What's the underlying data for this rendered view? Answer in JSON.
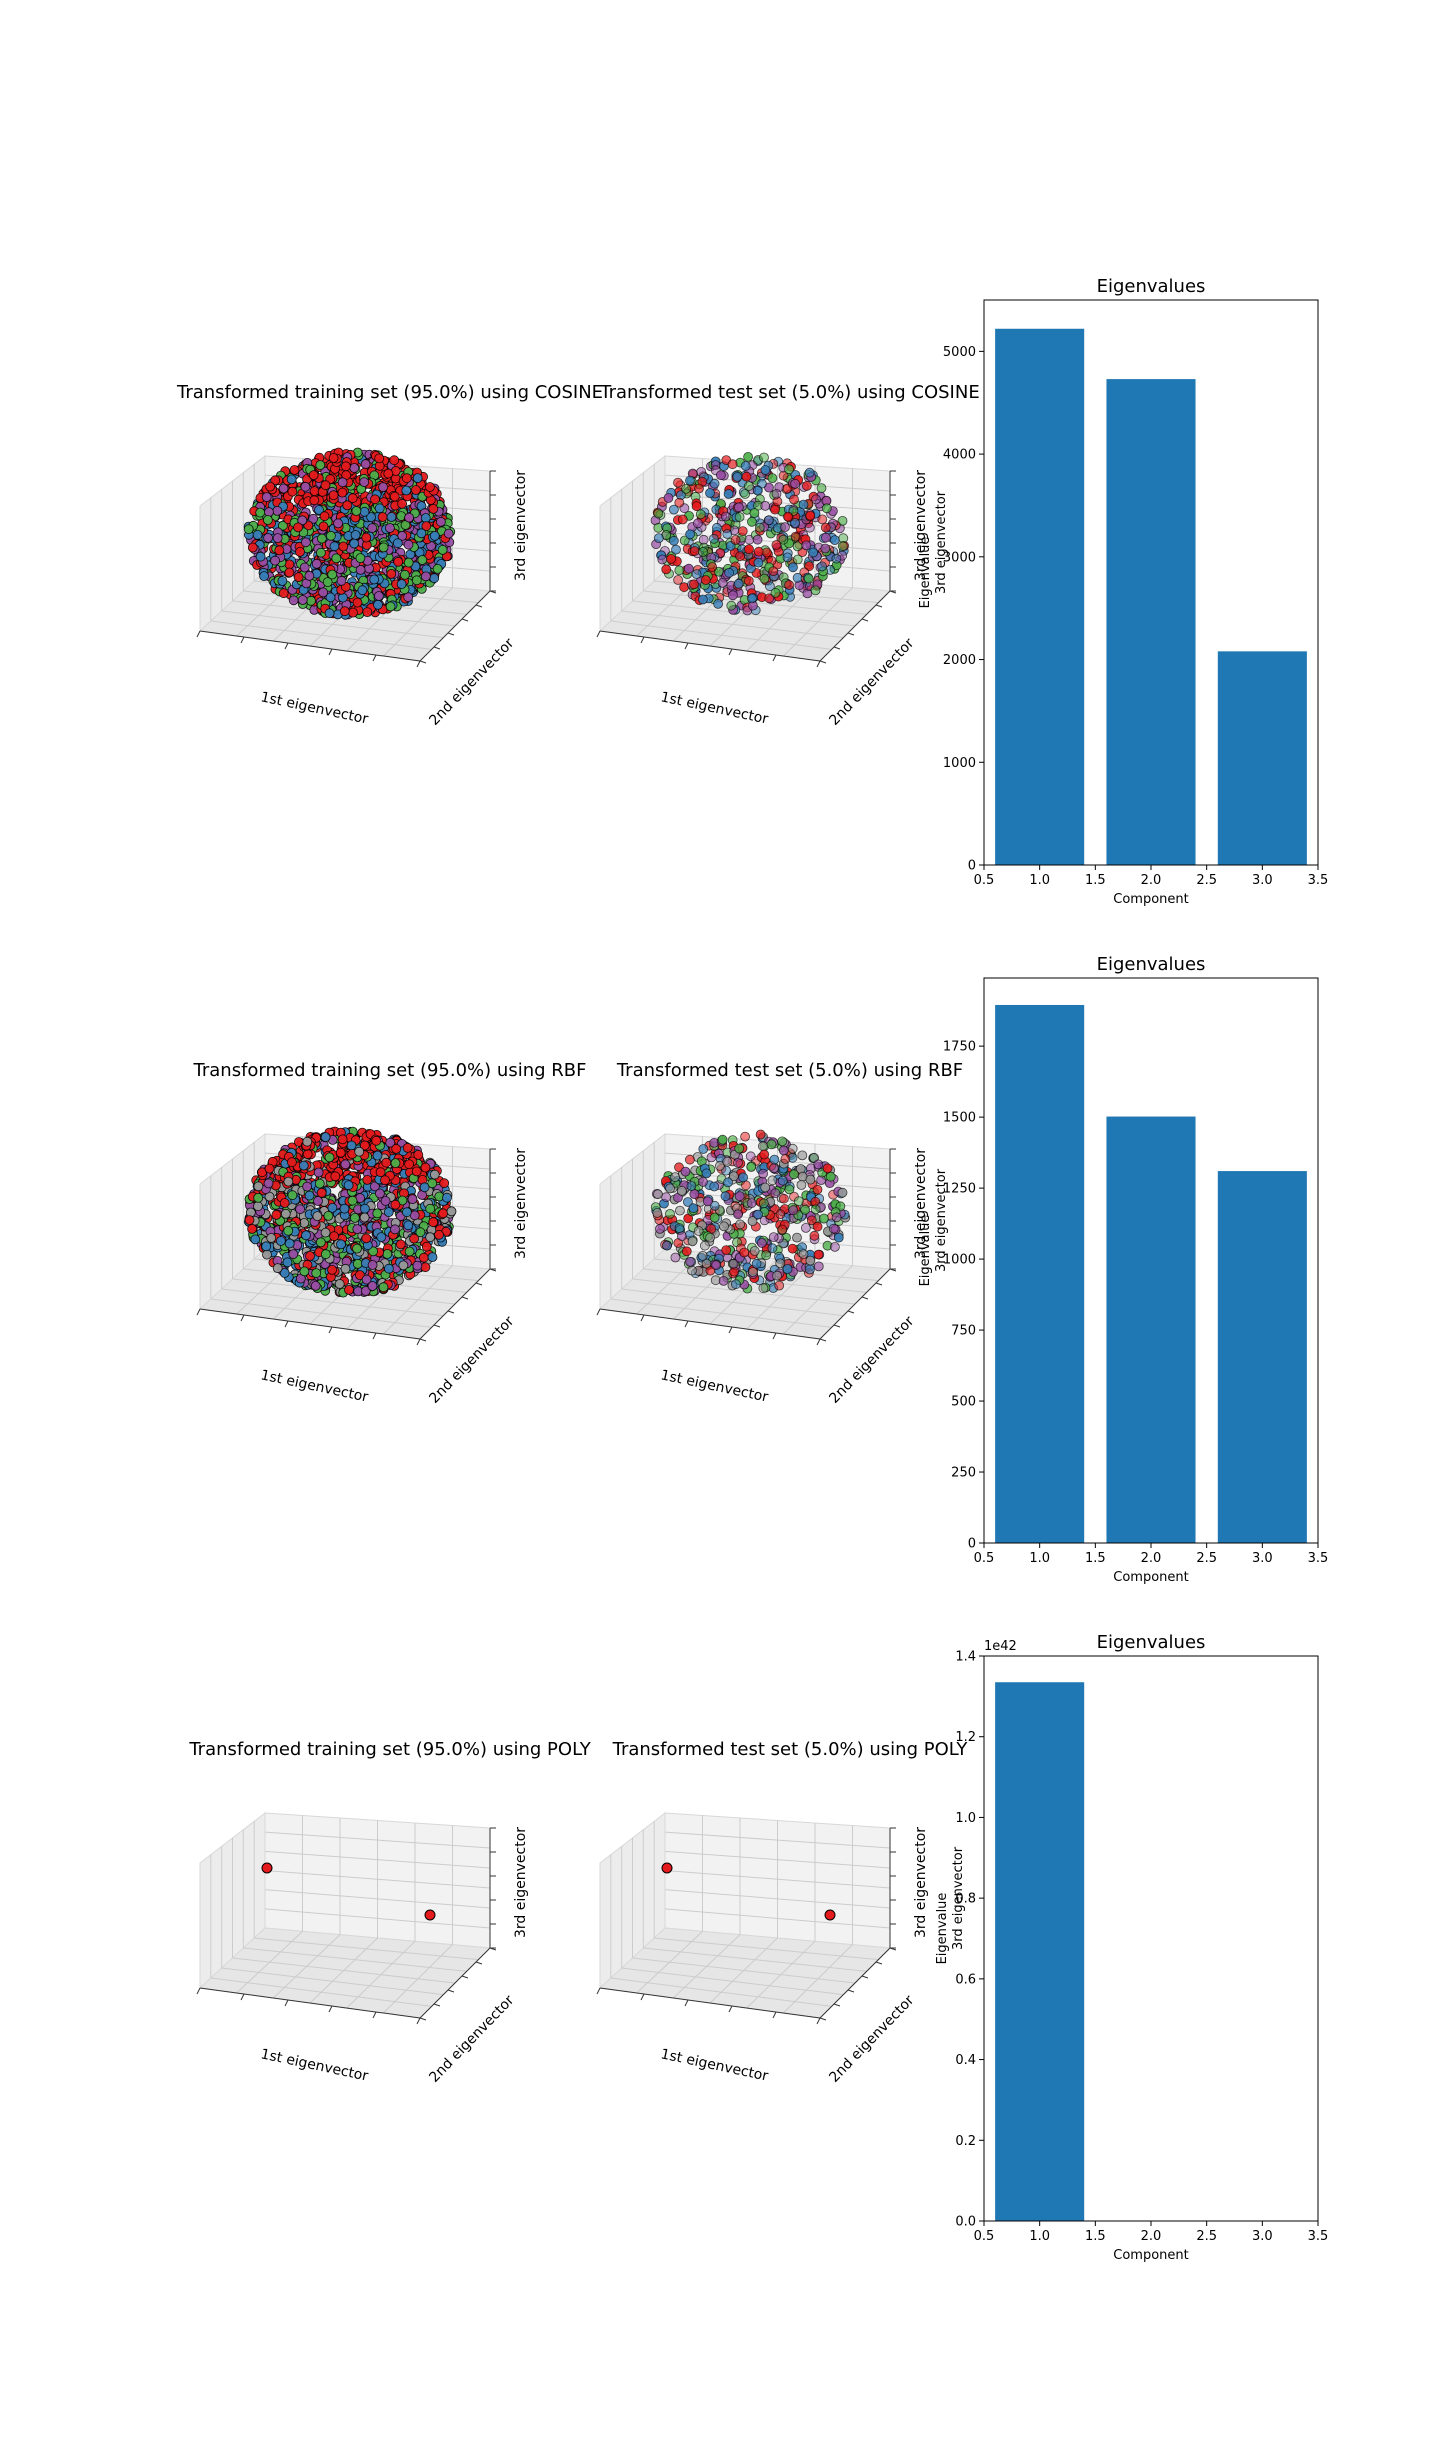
{
  "chart_data": [
    {
      "type": "scatter3d",
      "title": "Transformed training set (95.0%) using COSINE",
      "xlabel": "1st eigenvector",
      "ylabel": "2nd eigenvector",
      "zlabel": "3rd eigenvector",
      "shape": "dense ellipsoid cloud",
      "point_colors": [
        "#e41a1c",
        "#377eb8",
        "#4daf4a",
        "#984ea3"
      ]
    },
    {
      "type": "scatter3d",
      "title": "Transformed test set (5.0%) using COSINE",
      "xlabel": "1st eigenvector",
      "ylabel": "2nd eigenvector",
      "zlabel": "3rd eigenvector",
      "shape": "sparse ellipsoid cloud",
      "point_colors": [
        "#e41a1c",
        "#377eb8",
        "#4daf4a",
        "#984ea3"
      ]
    },
    {
      "type": "bar",
      "title": "Eigenvalues",
      "xlabel": "Component",
      "ylabel": "Eigenvalue",
      "overlap_label": "3rd eigenvector",
      "categories": [
        1,
        2,
        3
      ],
      "values": [
        5220,
        4730,
        2080
      ],
      "ylim": [
        0,
        5500
      ],
      "xlim": [
        0.5,
        3.5
      ],
      "xticks": [
        "0.5",
        "1.0",
        "1.5",
        "2.0",
        "2.5",
        "3.0",
        "3.5"
      ],
      "yticks": [
        "0",
        "1000",
        "2000",
        "3000",
        "4000",
        "5000"
      ],
      "ytick_values": [
        0,
        1000,
        2000,
        3000,
        4000,
        5000
      ],
      "color": "#1f77b4"
    },
    {
      "type": "scatter3d",
      "title": "Transformed training set (95.0%) using RBF",
      "xlabel": "1st eigenvector",
      "ylabel": "2nd eigenvector",
      "zlabel": "3rd eigenvector",
      "shape": "dense ellipsoid cloud",
      "point_colors": [
        "#e41a1c",
        "#377eb8",
        "#4daf4a",
        "#984ea3",
        "#999999"
      ]
    },
    {
      "type": "scatter3d",
      "title": "Transformed test set (5.0%) using RBF",
      "xlabel": "1st eigenvector",
      "ylabel": "2nd eigenvector",
      "zlabel": "3rd eigenvector",
      "shape": "sparse ellipsoid cloud",
      "point_colors": [
        "#e41a1c",
        "#377eb8",
        "#4daf4a",
        "#984ea3",
        "#999999"
      ]
    },
    {
      "type": "bar",
      "title": "Eigenvalues",
      "xlabel": "Component",
      "ylabel": "Eigenvalue",
      "overlap_label": "3rd eigenvector",
      "categories": [
        1,
        2,
        3
      ],
      "values": [
        1895,
        1502,
        1310
      ],
      "ylim": [
        0,
        1990
      ],
      "xlim": [
        0.5,
        3.5
      ],
      "xticks": [
        "0.5",
        "1.0",
        "1.5",
        "2.0",
        "2.5",
        "3.0",
        "3.5"
      ],
      "yticks": [
        "0",
        "250",
        "500",
        "750",
        "1000",
        "1250",
        "1500",
        "1750"
      ],
      "ytick_values": [
        0,
        250,
        500,
        750,
        1000,
        1250,
        1500,
        1750
      ],
      "color": "#1f77b4"
    },
    {
      "type": "scatter3d",
      "title": "Transformed training set (95.0%) using POLY",
      "xlabel": "1st eigenvector",
      "ylabel": "2nd eigenvector",
      "zlabel": "3rd eigenvector",
      "shape": "two isolated points",
      "point_colors": [
        "#e41a1c"
      ]
    },
    {
      "type": "scatter3d",
      "title": "Transformed test set (5.0%) using POLY",
      "xlabel": "1st eigenvector",
      "ylabel": "2nd eigenvector",
      "zlabel": "3rd eigenvector",
      "shape": "two isolated points",
      "point_colors": [
        "#e41a1c"
      ]
    },
    {
      "type": "bar",
      "title": "Eigenvalues",
      "xlabel": "Component",
      "ylabel": "Eigenvalue",
      "overlap_label": "3rd eigenvector",
      "categories": [
        1,
        2,
        3
      ],
      "values": [
        1.335,
        0,
        0
      ],
      "offset_label": "1e42",
      "ylim": [
        0,
        1.4
      ],
      "xlim": [
        0.5,
        3.5
      ],
      "xticks": [
        "0.5",
        "1.0",
        "1.5",
        "2.0",
        "2.5",
        "3.0",
        "3.5"
      ],
      "yticks": [
        "0.0",
        "0.2",
        "0.4",
        "0.6",
        "0.8",
        "1.0",
        "1.2",
        "1.4"
      ],
      "ytick_values": [
        0,
        0.2,
        0.4,
        0.6,
        0.8,
        1.0,
        1.2,
        1.4
      ],
      "color": "#1f77b4"
    }
  ]
}
